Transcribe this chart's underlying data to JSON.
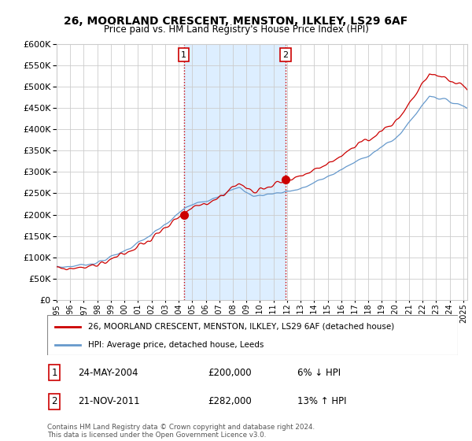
{
  "title": "26, MOORLAND CRESCENT, MENSTON, ILKLEY, LS29 6AF",
  "subtitle": "Price paid vs. HM Land Registry's House Price Index (HPI)",
  "ylim": [
    0,
    600000
  ],
  "xlim_start": 1995.0,
  "xlim_end": 2025.3,
  "sale1_date": 2004.38,
  "sale1_price": 200000,
  "sale1_label": "1",
  "sale1_text": "24-MAY-2004",
  "sale1_price_text": "£200,000",
  "sale1_hpi_text": "6% ↓ HPI",
  "sale2_date": 2011.9,
  "sale2_price": 282000,
  "sale2_label": "2",
  "sale2_text": "21-NOV-2011",
  "sale2_price_text": "£282,000",
  "sale2_hpi_text": "13% ↑ HPI",
  "legend_line1": "26, MOORLAND CRESCENT, MENSTON, ILKLEY, LS29 6AF (detached house)",
  "legend_line2": "HPI: Average price, detached house, Leeds",
  "footer": "Contains HM Land Registry data © Crown copyright and database right 2024.\nThis data is licensed under the Open Government Licence v3.0.",
  "line_color_red": "#cc0000",
  "line_color_blue": "#6699cc",
  "shade_color": "#ddeeff",
  "grid_color": "#cccccc",
  "label_box_color": "#cc0000"
}
